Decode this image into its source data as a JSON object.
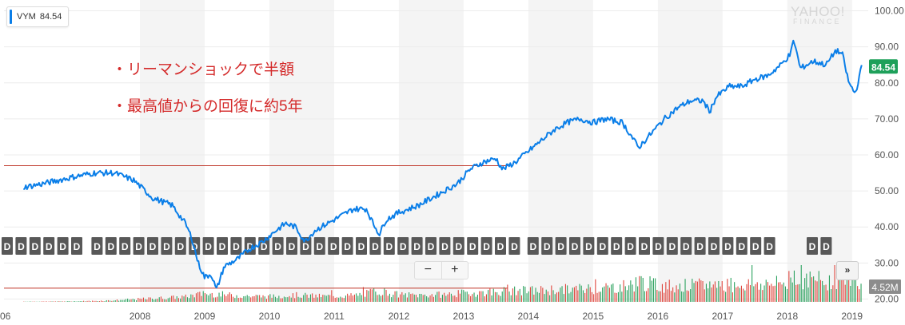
{
  "legend": {
    "symbol": "VYM",
    "value": "84.54"
  },
  "brand": {
    "line1": "YAHOO!",
    "line2": "FINANCE"
  },
  "annotations": [
    "・リーマンショックで半額",
    "・最高値からの回復に約5年"
  ],
  "zoom": {
    "minus": "−",
    "plus": "+"
  },
  "nav_more": "»",
  "dividend_marker": "D",
  "colors": {
    "line": "#0a7ee8",
    "annotation": "#d42a2a",
    "last_price": "#1ea05a",
    "volume_up": "#2ca25f",
    "volume_down": "#e0463e"
  },
  "chart_data": {
    "type": "line",
    "series": [
      {
        "name": "VYM",
        "x": [
          2006.2,
          2006.5,
          2007.0,
          2007.3,
          2007.6,
          2007.9,
          2008.2,
          2008.5,
          2008.7,
          2008.8,
          2008.9,
          2009.0,
          2009.1,
          2009.18,
          2009.3,
          2009.5,
          2009.7,
          2009.9,
          2010.1,
          2010.25,
          2010.4,
          2010.55,
          2010.7,
          2010.9,
          2011.1,
          2011.3,
          2011.5,
          2011.6,
          2011.7,
          2011.8,
          2012.0,
          2012.3,
          2012.5,
          2012.7,
          2012.9,
          2013.1,
          2013.3,
          2013.5,
          2013.6,
          2013.8,
          2014.0,
          2014.2,
          2014.4,
          2014.6,
          2014.8,
          2015.0,
          2015.2,
          2015.45,
          2015.6,
          2015.7,
          2015.9,
          2016.1,
          2016.3,
          2016.5,
          2016.7,
          2016.8,
          2016.9,
          2017.1,
          2017.3,
          2017.5,
          2017.7,
          2017.9,
          2018.05,
          2018.1,
          2018.2,
          2018.4,
          2018.6,
          2018.75,
          2018.85,
          2018.95,
          2019.05,
          2019.15
        ],
        "values": [
          51,
          52,
          54,
          55,
          55,
          53,
          48,
          46,
          41,
          37,
          30,
          26,
          27,
          22.5,
          29,
          31,
          34,
          36,
          39,
          41,
          40,
          36,
          39,
          41,
          43,
          45,
          45,
          41,
          38,
          42,
          44,
          46,
          48,
          50,
          52,
          56,
          58,
          59,
          56,
          58,
          61,
          64,
          67,
          69,
          70,
          69,
          70,
          69,
          65,
          62,
          66,
          70,
          73,
          75,
          75,
          72,
          76,
          79,
          79,
          81,
          82,
          85,
          88,
          92,
          84,
          86,
          85,
          89,
          88,
          80,
          77,
          84.54
        ],
        "volume": [
          0.1,
          0.1,
          0.2,
          0.3,
          0.5,
          0.8,
          1.1,
          1.4,
          1.6,
          2.0,
          2.3,
          2.5,
          2.4,
          2.6,
          2.2,
          2.0,
          1.8,
          1.7,
          1.7,
          1.9,
          2.1,
          2.0,
          1.8,
          1.8,
          1.9,
          2.0,
          2.6,
          3.2,
          3.5,
          3.0,
          2.2,
          2.1,
          2.2,
          2.3,
          2.6,
          2.8,
          3.0,
          3.2,
          3.3,
          3.4,
          3.5,
          3.6,
          3.8,
          3.9,
          4.1,
          4.3,
          4.5,
          4.8,
          5.5,
          6.5,
          5.4,
          5.0,
          5.1,
          5.0,
          5.2,
          5.4,
          5.6,
          5.4,
          5.5,
          5.6,
          5.5,
          5.7,
          6.5,
          9.0,
          7.0,
          6.8,
          6.5,
          6.8,
          7.2,
          7.8,
          7.0,
          4.52
        ]
      }
    ],
    "reference_lines": [
      57,
      23
    ],
    "ylim": [
      17,
      103
    ],
    "y_ticks": [
      20,
      30,
      40,
      50,
      60,
      70,
      80,
      90,
      100
    ],
    "y_tick_labels": [
      "20.00",
      "30.00",
      "40.00",
      "50.00",
      "60.00",
      "70.00",
      "80.00",
      "90.00",
      "100.00"
    ],
    "x_tick_labels": [
      {
        "year": 2006,
        "label": "06"
      },
      {
        "year": 2008,
        "label": "2008"
      },
      {
        "year": 2009,
        "label": "2009"
      },
      {
        "year": 2010,
        "label": "2010"
      },
      {
        "year": 2011,
        "label": "2011"
      },
      {
        "year": 2012,
        "label": "2012"
      },
      {
        "year": 2013,
        "label": "2013"
      },
      {
        "year": 2014,
        "label": "2014"
      },
      {
        "year": 2015,
        "label": "2015"
      },
      {
        "year": 2016,
        "label": "2016"
      },
      {
        "year": 2017,
        "label": "2017"
      },
      {
        "year": 2018,
        "label": "2018"
      },
      {
        "year": 2019,
        "label": "2019"
      }
    ],
    "last_price_label": "84.54",
    "volume_label": "4.52M",
    "dividend_count": 57
  }
}
